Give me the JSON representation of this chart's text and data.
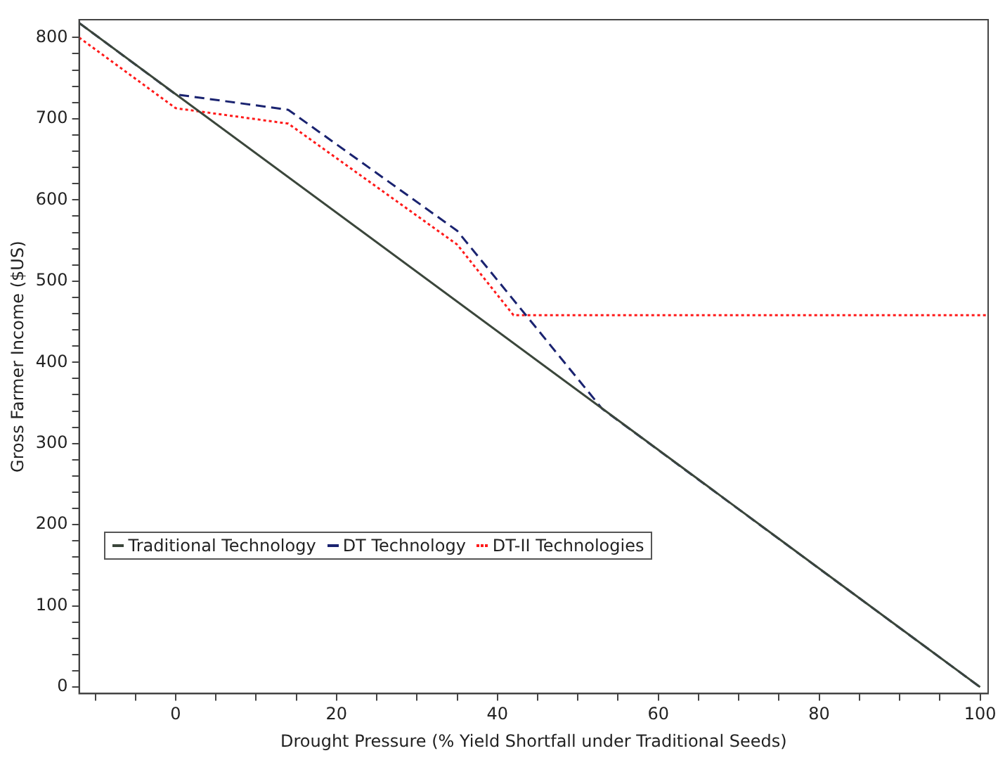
{
  "chart_data": {
    "type": "line",
    "xlabel": "Drought Pressure (% Yield Shortfall under Traditional Seeds)",
    "ylabel": "Gross Farmer Income ($US)",
    "xlim": [
      -12,
      101
    ],
    "ylim": [
      -8,
      822
    ],
    "xticks": [
      {
        "value": -10,
        "label": null
      },
      {
        "value": -5,
        "label": null
      },
      0,
      {
        "value": 5,
        "label": null
      },
      {
        "value": 10,
        "label": null
      },
      {
        "value": 15,
        "label": null
      },
      20,
      {
        "value": 25,
        "label": null
      },
      {
        "value": 30,
        "label": null
      },
      {
        "value": 35,
        "label": null
      },
      40,
      {
        "value": 45,
        "label": null
      },
      {
        "value": 50,
        "label": null
      },
      {
        "value": 55,
        "label": null
      },
      60,
      {
        "value": 65,
        "label": null
      },
      {
        "value": 70,
        "label": null
      },
      {
        "value": 75,
        "label": null
      },
      80,
      {
        "value": 85,
        "label": null
      },
      {
        "value": 90,
        "label": null
      },
      {
        "value": 95,
        "label": null
      },
      100
    ],
    "yticks": [
      0,
      {
        "value": 20,
        "label": null
      },
      {
        "value": 40,
        "label": null
      },
      {
        "value": 60,
        "label": null
      },
      {
        "value": 80,
        "label": null
      },
      100,
      {
        "value": 120,
        "label": null
      },
      {
        "value": 140,
        "label": null
      },
      {
        "value": 160,
        "label": null
      },
      {
        "value": 180,
        "label": null
      },
      200,
      {
        "value": 220,
        "label": null
      },
      {
        "value": 240,
        "label": null
      },
      {
        "value": 260,
        "label": null
      },
      {
        "value": 280,
        "label": null
      },
      300,
      {
        "value": 320,
        "label": null
      },
      {
        "value": 340,
        "label": null
      },
      {
        "value": 360,
        "label": null
      },
      {
        "value": 380,
        "label": null
      },
      400,
      {
        "value": 420,
        "label": null
      },
      {
        "value": 440,
        "label": null
      },
      {
        "value": 460,
        "label": null
      },
      {
        "value": 480,
        "label": null
      },
      500,
      {
        "value": 520,
        "label": null
      },
      {
        "value": 540,
        "label": null
      },
      {
        "value": 560,
        "label": null
      },
      {
        "value": 580,
        "label": null
      },
      600,
      {
        "value": 620,
        "label": null
      },
      {
        "value": 640,
        "label": null
      },
      {
        "value": 660,
        "label": null
      },
      {
        "value": 680,
        "label": null
      },
      700,
      {
        "value": 720,
        "label": null
      },
      {
        "value": 740,
        "label": null
      },
      {
        "value": 760,
        "label": null
      },
      {
        "value": 780,
        "label": null
      },
      800
    ],
    "grid": false,
    "legend": "bottom left",
    "marker": "none",
    "series": [
      {
        "name": "Traditional Technology",
        "color": "#3b463b",
        "line_style": "solid",
        "x": [
          -12,
          100
        ],
        "values": [
          818,
          0
        ]
      },
      {
        "name": "DT Technology",
        "color": "#1a2370",
        "line_style": "dashed",
        "x": [
          -12,
          0,
          14,
          35,
          53,
          100
        ],
        "values": [
          818,
          730,
          711,
          562,
          343,
          0
        ]
      },
      {
        "name": "DT-II Technologies",
        "color": "#ff1a1a",
        "line_style": "dotted",
        "x": [
          -12,
          0,
          14,
          35,
          42,
          101
        ],
        "values": [
          800,
          713,
          694,
          545,
          458,
          458
        ]
      }
    ]
  }
}
